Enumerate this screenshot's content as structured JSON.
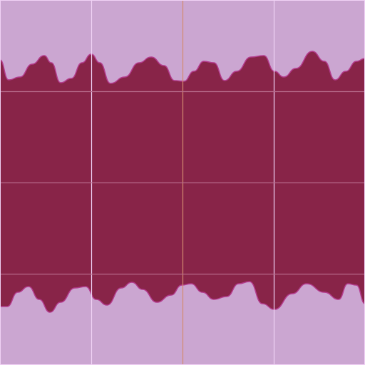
{
  "scene": {
    "colors": {
      "background": "#cba6d1",
      "terrain": "#882448",
      "terrain_edge": "#b43b8d",
      "grid_light": "#f0d2f5",
      "grid_dark": "#b66a8a",
      "grid_center": "#d28a6f"
    },
    "grid": {
      "columns": 4,
      "rows": 4
    },
    "layers": [
      {
        "name": "sky-band-top"
      },
      {
        "name": "ground-band"
      },
      {
        "name": "sky-band-bottom"
      }
    ]
  }
}
